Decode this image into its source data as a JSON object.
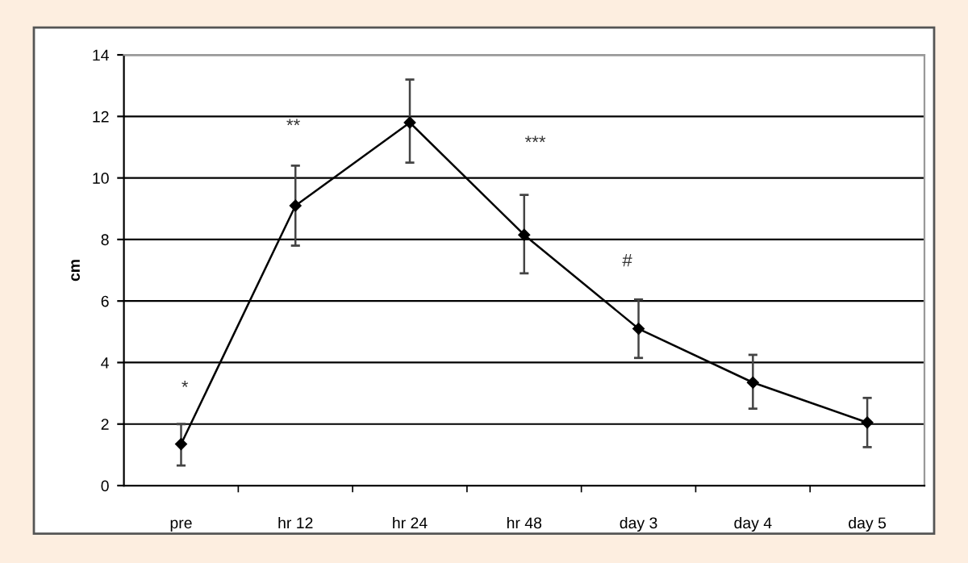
{
  "chart_data": {
    "type": "line",
    "ylabel": "cm",
    "categories": [
      "pre",
      "hr 12",
      "hr 24",
      "hr 48",
      "day 3",
      "day 4",
      "day 5"
    ],
    "series": [
      {
        "color": "#000000",
        "values": [
          1.35,
          9.1,
          11.8,
          8.15,
          5.1,
          3.35,
          2.05
        ],
        "errors": [
          [
            0.65,
            2.0
          ],
          [
            7.8,
            10.4
          ],
          [
            10.5,
            13.2
          ],
          [
            6.9,
            9.45
          ],
          [
            4.15,
            6.05
          ],
          [
            2.5,
            4.25
          ],
          [
            1.25,
            2.85
          ]
        ]
      }
    ],
    "ylim": [
      0,
      14
    ],
    "yticks": [
      0,
      2,
      4,
      6,
      8,
      10,
      12,
      14
    ],
    "grid": "y",
    "marker": "diamond",
    "line_style": "solid",
    "annotations": [
      "*",
      "**",
      "***",
      "#"
    ]
  }
}
